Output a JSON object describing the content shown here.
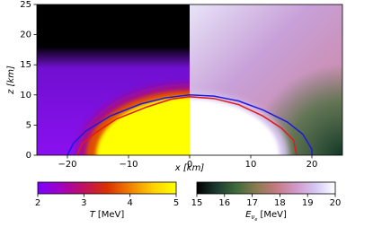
{
  "chart_data": {
    "type": "heatmap",
    "xlabel": "x [km]",
    "ylabel": "z [km]",
    "xlim": [
      -25,
      25
    ],
    "ylim": [
      0,
      25
    ],
    "xticks": [
      {
        "value": -20,
        "label": "−20"
      },
      {
        "value": -10,
        "label": "−10"
      },
      0,
      10,
      20
    ],
    "yticks": [
      0,
      5,
      10,
      15,
      20,
      25
    ],
    "series": [
      {
        "color": "#1a1ae0",
        "x": [
          -20,
          -19,
          -17,
          -13,
          -8,
          -4,
          0,
          4,
          8,
          12,
          16,
          18.5,
          20,
          20
        ],
        "values": [
          0,
          2,
          4,
          6.5,
          8.5,
          9.5,
          10,
          9.8,
          9,
          7.5,
          5.5,
          3.5,
          1,
          0
        ]
      },
      {
        "color": "#e01a1a",
        "x": [
          -18.5,
          -17.5,
          -15,
          -12,
          -7,
          -3,
          0,
          4,
          8,
          12,
          15,
          17,
          17.5
        ],
        "values": [
          0,
          2,
          4,
          6,
          8,
          9.3,
          9.7,
          9.4,
          8.4,
          6.5,
          4.5,
          2.5,
          0
        ]
      }
    ],
    "colorbars": [
      {
        "label_var": "T",
        "label_unit": "[MeV]",
        "lim": [
          2,
          5
        ],
        "ticks": [
          2,
          3,
          4,
          5
        ],
        "colors": [
          "#7a00ff",
          "#a000c0",
          "#c01060",
          "#d83000",
          "#f08000",
          "#ffd000",
          "#ffff00"
        ]
      },
      {
        "label_var": "E",
        "label_sub": "ν",
        "label_subsub": "e",
        "label_unit": "[MeV]",
        "lim": [
          15,
          20
        ],
        "ticks": [
          15,
          16,
          17,
          18,
          19,
          20
        ],
        "colors": [
          "#000000",
          "#1a3a30",
          "#3e6a3a",
          "#8a7a50",
          "#c47a80",
          "#d098c8",
          "#d4c8f4",
          "#ffffff"
        ]
      }
    ]
  }
}
